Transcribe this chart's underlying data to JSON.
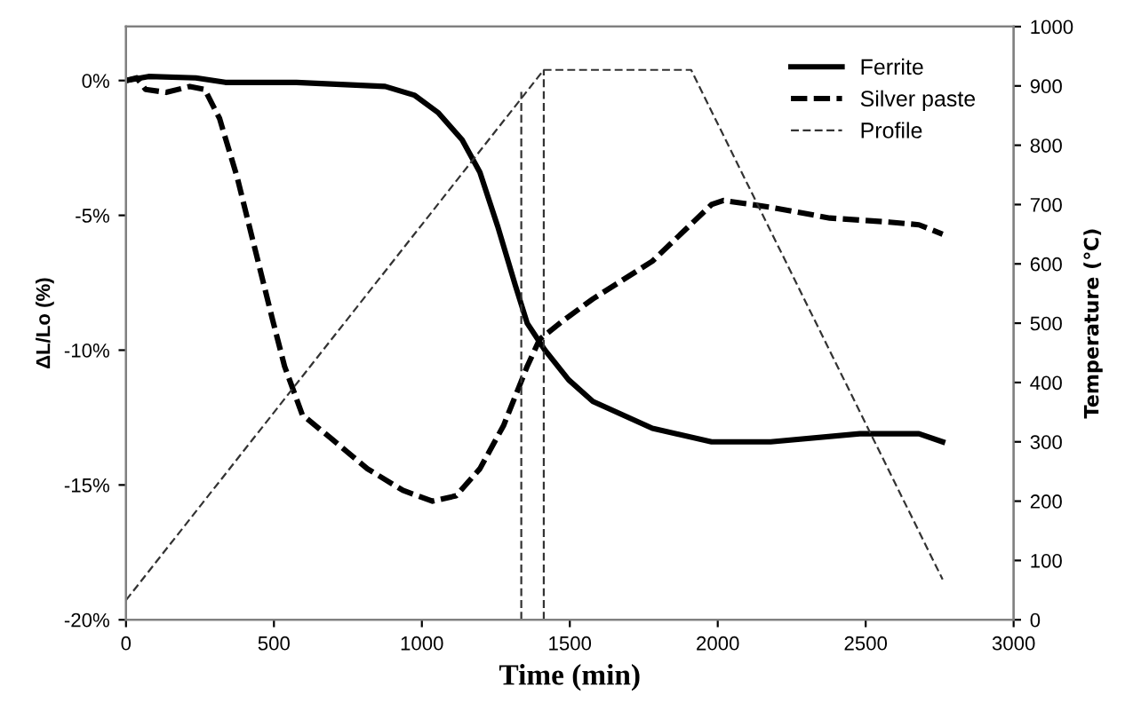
{
  "chart_data": {
    "type": "line",
    "xlabel": "Time (min)",
    "ylabel": "ΔL/Lo (%)",
    "y2label": "Temperature (℃)",
    "xlim": [
      0,
      3000
    ],
    "xticks": [
      0,
      500,
      1000,
      1500,
      2000,
      2500,
      3000
    ],
    "ylim": [
      -20,
      2
    ],
    "yticks": [
      {
        "value": 0,
        "label": "0%"
      },
      {
        "value": -5,
        "label": "-5%"
      },
      {
        "value": -10,
        "label": "-10%"
      },
      {
        "value": -15,
        "label": "-15%"
      },
      {
        "value": -20,
        "label": "-20%"
      }
    ],
    "y2lim": [
      0,
      1000
    ],
    "y2ticks": [
      0,
      100,
      200,
      300,
      400,
      500,
      600,
      700,
      800,
      900,
      1000
    ],
    "grid": false,
    "legend": "top right",
    "series": [
      {
        "name": "Ferrite",
        "color": "#000000",
        "line_style": "solid",
        "x": [
          0,
          76,
          236,
          336,
          576,
          876,
          976,
          1056,
          1136,
          1196,
          1256,
          1316,
          1356,
          1416,
          1496,
          1578,
          1779,
          1979,
          2179,
          2480,
          2680,
          2760
        ],
        "values": [
          0,
          0.15,
          0.1,
          -0.07,
          -0.07,
          -0.22,
          -0.55,
          -1.2,
          -2.2,
          -3.4,
          -5.4,
          -7.6,
          -9.0,
          -10.0,
          -11.1,
          -11.9,
          -12.9,
          -13.4,
          -13.4,
          -13.1,
          -13.1,
          -13.4
        ]
      },
      {
        "name": "Silver paste",
        "color": "#000000",
        "line_style": "dashed",
        "x": [
          0,
          36,
          66,
          136,
          216,
          266,
          316,
          376,
          436,
          496,
          536,
          596,
          696,
          816,
          936,
          1036,
          1116,
          1196,
          1276,
          1356,
          1398,
          1478,
          1578,
          1779,
          1979,
          2019,
          2179,
          2379,
          2580,
          2680,
          2760
        ],
        "values": [
          0,
          0.1,
          -0.33,
          -0.44,
          -0.22,
          -0.33,
          -1.4,
          -3.6,
          -6.25,
          -8.9,
          -10.6,
          -12.4,
          -13.3,
          -14.4,
          -15.2,
          -15.6,
          -15.4,
          -14.4,
          -12.8,
          -10.6,
          -9.6,
          -8.9,
          -8.1,
          -6.7,
          -4.6,
          -4.45,
          -4.7,
          -5.1,
          -5.25,
          -5.35,
          -5.7
        ]
      },
      {
        "name": "Profile",
        "color": "#333333",
        "line_style": "dashed",
        "axis": "y2",
        "x": [
          0,
          1412,
          1910,
          2760
        ],
        "values": [
          33,
          927,
          927,
          68
        ]
      },
      {
        "color": "#333333",
        "line_style": "dashed",
        "axis": "y2",
        "x": [
          1336,
          1336
        ],
        "values": [
          0,
          890
        ]
      },
      {
        "color": "#333333",
        "line_style": "dashed",
        "axis": "y2",
        "x": [
          1412,
          1412
        ],
        "values": [
          0,
          927
        ]
      }
    ]
  }
}
